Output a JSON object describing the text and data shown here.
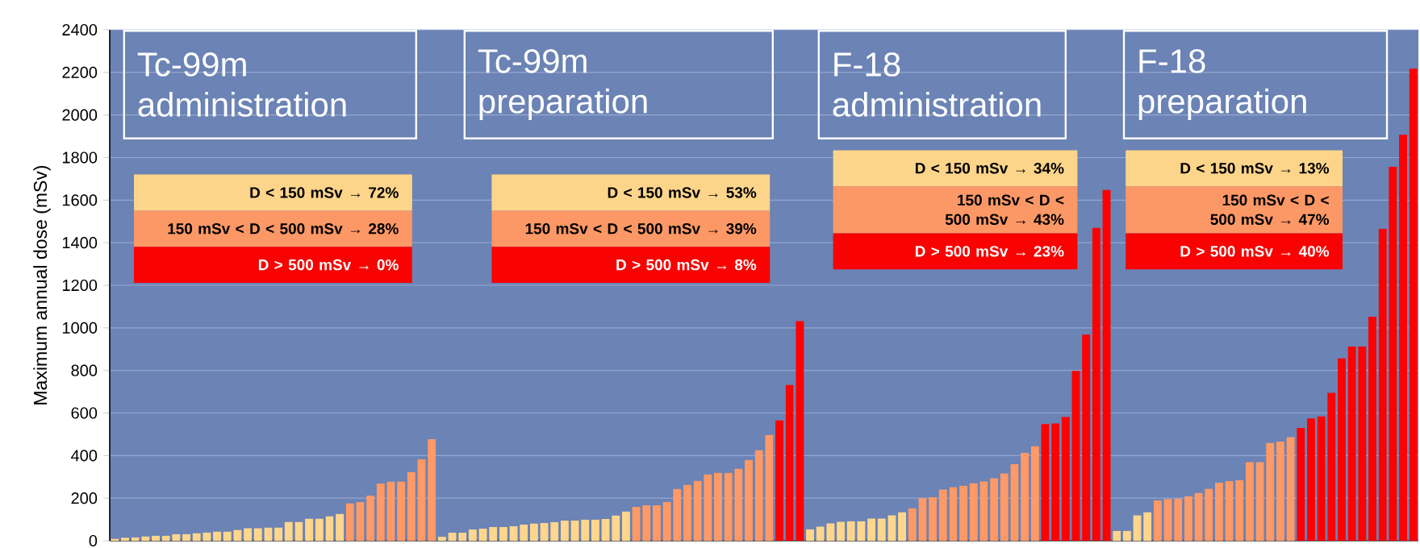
{
  "chart_data": {
    "type": "bar",
    "ylabel": "Maximum annual dose (mSv)",
    "categories": [
      null,
      null,
      null,
      null,
      null,
      null,
      null,
      null,
      null,
      null,
      null,
      null,
      null,
      null,
      null,
      null,
      null,
      null,
      null,
      null,
      null,
      null,
      null,
      null,
      null,
      null,
      null,
      null,
      null,
      null,
      null,
      null,
      null,
      null,
      null,
      null,
      null,
      null,
      null,
      null,
      null,
      null,
      null,
      null,
      null,
      null,
      null,
      null,
      null,
      null,
      null,
      null,
      null,
      null,
      null,
      null,
      null,
      null,
      null,
      null,
      null,
      null,
      null,
      null,
      null,
      null,
      null,
      null,
      null,
      null,
      null,
      null,
      null,
      null,
      null,
      null,
      null,
      null,
      null,
      null,
      null,
      null,
      null,
      null,
      null,
      null,
      null,
      null,
      null,
      null,
      null,
      null,
      null,
      null,
      null,
      null,
      null,
      null,
      null,
      null,
      null,
      null,
      null,
      null,
      null,
      null,
      null,
      null,
      null,
      null,
      null,
      null,
      null,
      null,
      null,
      null,
      null,
      null,
      null,
      null,
      null,
      null,
      null,
      null,
      null,
      null,
      null,
      null
    ],
    "values": [
      9,
      14,
      16,
      20,
      24,
      24,
      31,
      31,
      35,
      39,
      43,
      43,
      50,
      59,
      59,
      62,
      62,
      88,
      88,
      103,
      103,
      115,
      126,
      176,
      182,
      212,
      269,
      277,
      277,
      323,
      382,
      477,
      19,
      38,
      38,
      53,
      57,
      64,
      64,
      68,
      76,
      80,
      83,
      87,
      95,
      95,
      99,
      99,
      102,
      118,
      137,
      159,
      167,
      167,
      182,
      243,
      262,
      281,
      311,
      319,
      319,
      338,
      379,
      425,
      497,
      565,
      732,
      1032,
      54,
      66,
      81,
      89,
      92,
      92,
      104,
      104,
      119,
      133,
      152,
      201,
      204,
      240,
      252,
      258,
      270,
      278,
      293,
      316,
      360,
      413,
      444,
      548,
      551,
      581,
      798,
      968,
      1470,
      1648,
      46,
      46,
      119,
      133,
      189,
      196,
      198,
      209,
      224,
      244,
      273,
      280,
      285,
      369,
      369,
      459,
      466,
      486,
      530,
      574,
      584,
      695,
      856,
      912,
      912,
      1052,
      1465,
      1756,
      1907,
      2217
    ],
    "colors": [
      "#ffd68c",
      "#ffd68c",
      "#ffd68c",
      "#ffd68c",
      "#ffd68c",
      "#ffd68c",
      "#ffd68c",
      "#ffd68c",
      "#ffd68c",
      "#ffd68c",
      "#ffd68c",
      "#ffd68c",
      "#ffd68c",
      "#ffd68c",
      "#ffd68c",
      "#ffd68c",
      "#ffd68c",
      "#ffd68c",
      "#ffd68c",
      "#ffd68c",
      "#ffd68c",
      "#ffd68c",
      "#ffd68c",
      "#ff9966",
      "#ff9966",
      "#ff9966",
      "#ff9966",
      "#ff9966",
      "#ff9966",
      "#ff9966",
      "#ff9966",
      "#ff9966",
      "#ffd68c",
      "#ffd68c",
      "#ffd68c",
      "#ffd68c",
      "#ffd68c",
      "#ffd68c",
      "#ffd68c",
      "#ffd68c",
      "#ffd68c",
      "#ffd68c",
      "#ffd68c",
      "#ffd68c",
      "#ffd68c",
      "#ffd68c",
      "#ffd68c",
      "#ffd68c",
      "#ffd68c",
      "#ffd68c",
      "#ffd68c",
      "#ff9966",
      "#ff9966",
      "#ff9966",
      "#ff9966",
      "#ff9966",
      "#ff9966",
      "#ff9966",
      "#ff9966",
      "#ff9966",
      "#ff9966",
      "#ff9966",
      "#ff9966",
      "#ff9966",
      "#ff9966",
      "#ff0000",
      "#ff0000",
      "#ff0000",
      "#ffd68c",
      "#ffd68c",
      "#ffd68c",
      "#ffd68c",
      "#ffd68c",
      "#ffd68c",
      "#ffd68c",
      "#ffd68c",
      "#ffd68c",
      "#ffd68c",
      "#ff9966",
      "#ff9966",
      "#ff9966",
      "#ff9966",
      "#ff9966",
      "#ff9966",
      "#ff9966",
      "#ff9966",
      "#ff9966",
      "#ff9966",
      "#ff9966",
      "#ff9966",
      "#ff9966",
      "#ff0000",
      "#ff0000",
      "#ff0000",
      "#ff0000",
      "#ff0000",
      "#ff0000",
      "#ff0000",
      "#ffd68c",
      "#ffd68c",
      "#ffd68c",
      "#ffd68c",
      "#ff9966",
      "#ff9966",
      "#ff9966",
      "#ff9966",
      "#ff9966",
      "#ff9966",
      "#ff9966",
      "#ff9966",
      "#ff9966",
      "#ff9966",
      "#ff9966",
      "#ff9966",
      "#ff9966",
      "#ff9966",
      "#ff0000",
      "#ff0000",
      "#ff0000",
      "#ff0000",
      "#ff0000",
      "#ff0000",
      "#ff0000",
      "#ff0000",
      "#ff0000",
      "#ff0000",
      "#ff0000",
      "#ff0000"
    ],
    "ylim": [
      0,
      2400
    ],
    "yticks": [
      0,
      200,
      400,
      600,
      800,
      1000,
      1200,
      1400,
      1600,
      1800,
      2000,
      2200,
      2400
    ],
    "grid": "y",
    "tick_labels": "y",
    "annotations": [
      "Tc-99m administration",
      "D < 150 mSv → 72%",
      "150 mSv < D < 500 mSv → 28%",
      "D > 500 mSv → 0%",
      "Tc-99m preparation",
      "D < 150 mSv → 53%",
      "150 mSv < D < 500 mSv → 39%",
      "D > 500 mSv → 8%",
      "F-18 administration",
      "D < 150 mSv → 34%",
      "150 mSv < D < 500 mSv → 43%",
      "D > 500 mSv → 23%",
      "F-18 preparation",
      "D < 150 mSv → 13%",
      "150 mSv < D < 500 mSv → 47%",
      "D > 500 mSv → 40%"
    ]
  }
}
